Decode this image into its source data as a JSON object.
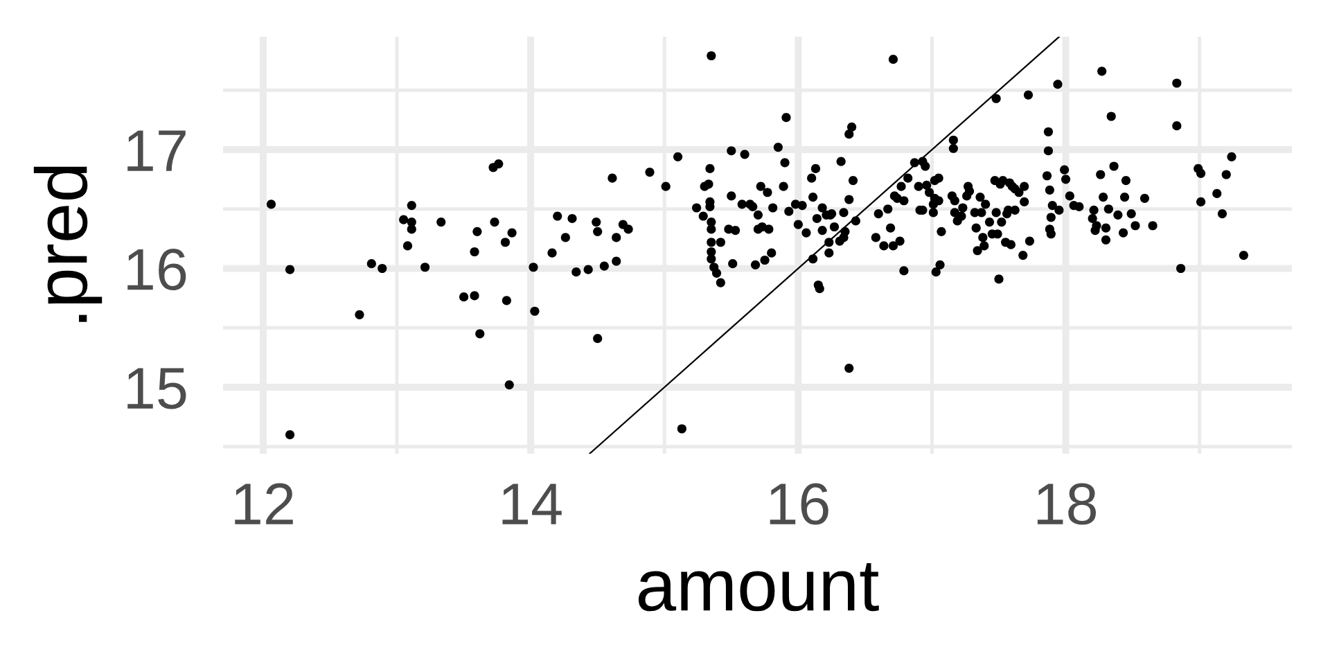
{
  "chart_data": {
    "type": "scatter",
    "xlabel": "amount",
    "ylabel": ".pred",
    "xlim": [
      11.7,
      19.69
    ],
    "ylim": [
      14.44,
      17.95
    ],
    "xticks": [
      12,
      {
        "value": 13,
        "label": null
      },
      14,
      {
        "value": 15,
        "label": null
      },
      16,
      {
        "value": 17,
        "label": null
      },
      18,
      {
        "value": 19,
        "label": null
      }
    ],
    "yticks": [
      {
        "value": 14.5,
        "label": null
      },
      15,
      {
        "value": 15.5,
        "label": null
      },
      16,
      {
        "value": 16.5,
        "label": null
      },
      17,
      {
        "value": 17.5,
        "label": null
      }
    ],
    "grid": true,
    "series": [
      {
        "color": "#000000",
        "marker": "circle",
        "x": [
          12.06,
          12.2,
          12.2,
          12.72,
          12.81,
          12.89,
          13.05,
          13.08,
          13.11,
          13.11,
          13.11,
          13.21,
          13.33,
          13.5,
          13.58,
          13.58,
          13.6,
          13.62,
          13.72,
          13.76,
          13.73,
          13.81,
          13.82,
          13.84,
          13.86,
          14.02,
          14.03,
          14.16,
          14.2,
          14.26,
          14.31,
          14.34,
          14.43,
          14.49,
          14.5,
          14.5,
          14.55,
          14.61,
          14.64,
          14.64,
          14.69,
          14.73,
          14.89,
          15.01,
          15.1,
          15.13,
          15.24,
          15.29,
          15.3,
          15.33,
          15.34,
          15.34,
          15.34,
          15.35,
          15.35,
          15.35,
          15.35,
          15.35,
          15.35,
          15.37,
          15.39,
          15.42,
          15.42,
          15.48,
          15.5,
          15.5,
          15.51,
          15.53,
          15.58,
          15.6,
          15.64,
          15.66,
          15.68,
          15.7,
          15.7,
          15.72,
          15.73,
          15.75,
          15.77,
          15.78,
          15.8,
          15.81,
          15.85,
          15.89,
          15.9,
          15.91,
          15.93,
          15.98,
          16.0,
          16.03,
          16.06,
          16.1,
          16.11,
          16.11,
          16.13,
          16.14,
          16.15,
          16.16,
          16.18,
          16.18,
          16.21,
          16.23,
          16.23,
          16.24,
          16.25,
          16.27,
          16.31,
          16.32,
          16.34,
          16.34,
          16.35,
          16.38,
          16.38,
          16.4,
          16.38,
          16.41,
          16.43,
          16.58,
          16.6,
          16.64,
          16.67,
          16.69,
          16.71,
          16.71,
          16.72,
          16.74,
          16.76,
          16.77,
          16.79,
          16.79,
          16.82,
          16.87,
          16.9,
          16.91,
          16.93,
          16.93,
          16.95,
          16.96,
          16.98,
          17.01,
          17.01,
          17.02,
          17.02,
          17.03,
          17.05,
          17.05,
          17.06,
          17.07,
          17.15,
          17.16,
          17.16,
          17.17,
          17.17,
          17.19,
          17.22,
          17.23,
          17.26,
          17.27,
          17.28,
          17.32,
          17.33,
          17.34,
          17.36,
          17.37,
          17.38,
          17.39,
          17.4,
          17.43,
          17.45,
          17.47,
          17.48,
          17.48,
          17.49,
          17.5,
          17.51,
          17.52,
          17.53,
          17.55,
          17.56,
          17.57,
          17.58,
          17.59,
          17.6,
          17.62,
          17.62,
          17.65,
          17.68,
          17.69,
          17.69,
          17.72,
          17.73,
          17.86,
          17.87,
          17.87,
          17.88,
          17.89,
          17.88,
          17.89,
          17.9,
          17.94,
          17.95,
          17.99,
          18.0,
          18.03,
          18.06,
          18.1,
          18.2,
          18.21,
          18.22,
          18.23,
          18.26,
          18.27,
          18.28,
          18.3,
          18.3,
          18.32,
          18.34,
          18.36,
          18.39,
          18.43,
          18.44,
          18.45,
          18.49,
          18.52,
          18.59,
          18.65,
          18.83,
          18.83,
          18.86,
          18.99,
          19.01,
          19.01,
          19.13,
          19.17,
          19.2,
          19.24,
          19.33
        ],
        "values": [
          16.54,
          15.99,
          14.6,
          15.61,
          16.04,
          16.0,
          16.41,
          16.19,
          16.53,
          16.39,
          16.33,
          16.01,
          16.39,
          15.76,
          15.77,
          16.14,
          16.31,
          15.45,
          16.85,
          16.88,
          16.39,
          16.22,
          15.73,
          15.02,
          16.3,
          16.01,
          15.64,
          16.13,
          16.44,
          16.26,
          16.42,
          15.97,
          15.99,
          16.39,
          16.31,
          15.41,
          16.02,
          16.76,
          16.06,
          16.26,
          16.37,
          16.33,
          16.81,
          16.69,
          16.94,
          14.65,
          16.51,
          16.44,
          16.69,
          16.71,
          16.84,
          16.56,
          16.52,
          17.79,
          16.39,
          16.33,
          16.22,
          16.14,
          16.08,
          16.01,
          15.96,
          15.88,
          16.22,
          16.33,
          16.61,
          16.99,
          16.04,
          16.32,
          16.54,
          16.96,
          16.54,
          16.52,
          16.03,
          16.45,
          16.33,
          16.69,
          16.35,
          16.07,
          16.64,
          16.33,
          16.13,
          16.51,
          17.02,
          16.69,
          16.89,
          17.27,
          16.48,
          16.54,
          16.37,
          16.53,
          16.3,
          16.76,
          16.6,
          16.08,
          16.84,
          16.42,
          15.86,
          15.83,
          16.32,
          16.51,
          16.45,
          16.13,
          16.22,
          16.45,
          16.46,
          16.35,
          16.23,
          16.9,
          16.26,
          16.47,
          16.31,
          16.58,
          17.13,
          17.19,
          15.16,
          16.74,
          16.4,
          16.26,
          16.46,
          16.19,
          16.5,
          16.34,
          17.76,
          16.19,
          16.61,
          16.59,
          16.23,
          16.69,
          15.98,
          16.57,
          16.76,
          16.89,
          16.69,
          16.49,
          16.9,
          16.49,
          16.86,
          16.7,
          16.64,
          16.54,
          16.47,
          16.74,
          16.59,
          15.97,
          16.76,
          16.57,
          16.03,
          16.31,
          16.61,
          17.08,
          17.01,
          16.47,
          16.57,
          16.4,
          16.44,
          16.51,
          16.61,
          16.69,
          16.65,
          16.47,
          16.34,
          16.15,
          16.6,
          16.47,
          16.26,
          16.19,
          16.54,
          16.39,
          16.29,
          16.74,
          17.43,
          16.47,
          16.29,
          15.91,
          16.71,
          16.39,
          16.74,
          16.22,
          16.46,
          16.49,
          16.72,
          16.2,
          16.69,
          16.67,
          16.49,
          16.64,
          16.11,
          16.56,
          16.69,
          17.46,
          16.23,
          16.78,
          17.15,
          16.99,
          16.66,
          16.43,
          16.33,
          16.29,
          16.53,
          17.55,
          16.49,
          16.83,
          16.75,
          16.61,
          16.53,
          16.52,
          16.42,
          16.49,
          16.32,
          16.36,
          16.79,
          17.66,
          16.6,
          16.34,
          16.24,
          16.5,
          17.28,
          16.86,
          16.45,
          16.3,
          16.6,
          16.74,
          16.46,
          16.36,
          16.59,
          16.36,
          17.56,
          17.2,
          16.0,
          16.84,
          16.8,
          16.56,
          16.63,
          16.46,
          16.79,
          16.94,
          16.11
        ]
      },
      {
        "type": "line",
        "color": "#000000",
        "line_style": "solid",
        "marker": "none",
        "x": [
          14.44,
          17.95
        ],
        "values": [
          14.44,
          17.95
        ]
      }
    ]
  }
}
